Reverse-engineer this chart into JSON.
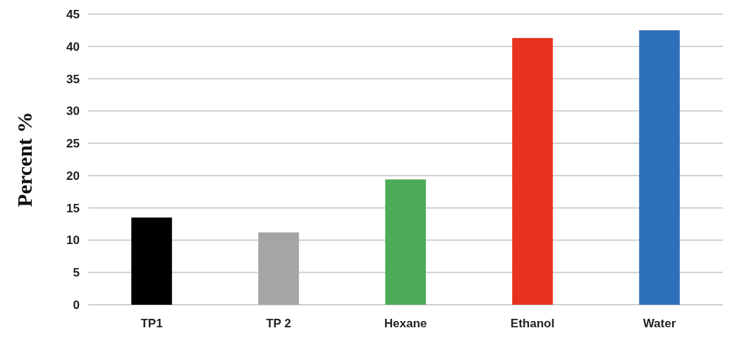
{
  "chart_data": {
    "type": "bar",
    "ylabel": "Percent %",
    "categories": [
      "TP1",
      "TP 2",
      "Hexane",
      "Ethanol",
      "Water"
    ],
    "values": [
      13.5,
      11.2,
      19.4,
      41.3,
      42.5
    ],
    "colors": [
      "#000000",
      "#a5a5a5",
      "#4daa57",
      "#e8321f",
      "#2e6fba"
    ],
    "ylim": [
      0,
      45
    ],
    "yticks": [
      0,
      5,
      10,
      15,
      20,
      25,
      30,
      35,
      40,
      45
    ],
    "grid": "y"
  }
}
